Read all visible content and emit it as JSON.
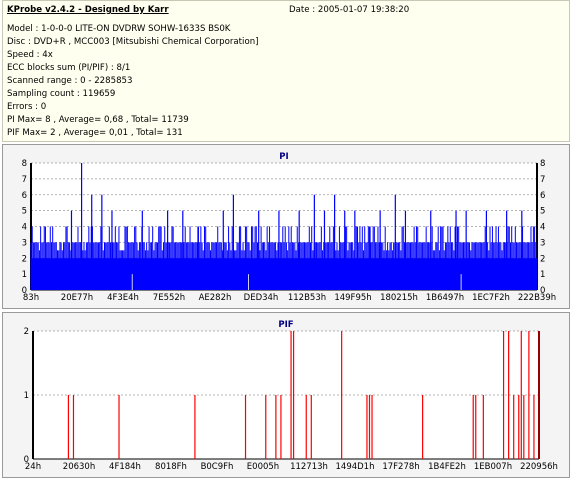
{
  "header": {
    "title": "KProbe v2.4.2 - Designed by Karr",
    "date": "Date : 2005-01-07 19:38:20",
    "lines": [
      "Model : 1-0-0-0 LITE-ON DVDRW SOHW-1633S BS0K",
      "Disc : DVD+R , MCC003 [Mitsubishi Chemical Corporation]",
      "Speed : 4x",
      "ECC blocks sum (PI/PIF) : 8/1",
      "Scanned range : 0 - 2285853",
      "Sampling count : 119659",
      "Errors : 0",
      "PI Max= 8 , Average= 0,68 , Total= 11739",
      "PIF Max= 2 , Average= 0,01 , Total= 131"
    ]
  },
  "colors": {
    "pi": "#0000ff",
    "pif": "#ff0000",
    "panel_bg": "#f4f4f4",
    "plot_bg": "#ffffff"
  },
  "chart_data": [
    {
      "type": "bar",
      "title": "PI",
      "ylim": [
        0,
        8
      ],
      "y_ticks": [
        "0",
        "1",
        "2",
        "3",
        "4",
        "5",
        "6",
        "7",
        "8"
      ],
      "x_tick_labels": [
        "83h",
        "20E77h",
        "4F3E4h",
        "7E552h",
        "AE282h",
        "DED34h",
        "112B53h",
        "149F95h",
        "180215h",
        "1B6497h",
        "1EC7F2h",
        "222B39h"
      ],
      "baseline": 2,
      "spikes": [
        {
          "x": 0.1,
          "v": 8
        },
        {
          "x": 0.08,
          "v": 5
        },
        {
          "x": 0.12,
          "v": 6
        },
        {
          "x": 0.14,
          "v": 6
        },
        {
          "x": 0.16,
          "v": 5
        },
        {
          "x": 0.22,
          "v": 5
        },
        {
          "x": 0.27,
          "v": 5
        },
        {
          "x": 0.3,
          "v": 5
        },
        {
          "x": 0.33,
          "v": 4
        },
        {
          "x": 0.38,
          "v": 5
        },
        {
          "x": 0.4,
          "v": 6
        },
        {
          "x": 0.45,
          "v": 5
        },
        {
          "x": 0.49,
          "v": 5
        },
        {
          "x": 0.53,
          "v": 5
        },
        {
          "x": 0.56,
          "v": 6
        },
        {
          "x": 0.58,
          "v": 5
        },
        {
          "x": 0.6,
          "v": 6
        },
        {
          "x": 0.62,
          "v": 5
        },
        {
          "x": 0.64,
          "v": 5
        },
        {
          "x": 0.67,
          "v": 4
        },
        {
          "x": 0.69,
          "v": 5
        },
        {
          "x": 0.72,
          "v": 6
        },
        {
          "x": 0.74,
          "v": 5
        },
        {
          "x": 0.79,
          "v": 5
        },
        {
          "x": 0.84,
          "v": 5
        },
        {
          "x": 0.86,
          "v": 5
        },
        {
          "x": 0.9,
          "v": 5
        },
        {
          "x": 0.94,
          "v": 5
        },
        {
          "x": 0.97,
          "v": 5
        }
      ]
    },
    {
      "type": "bar",
      "title": "PIF",
      "ylim": [
        0,
        2
      ],
      "y_ticks": [
        "0",
        "1",
        "2"
      ],
      "x_tick_labels": [
        "24h",
        "20630h",
        "4F184h",
        "8018Fh",
        "B0C9Fh",
        "E0005h",
        "112713h",
        "1494D1h",
        "17F278h",
        "1B4FE2h",
        "1EB007h",
        "220956h"
      ],
      "events": [
        {
          "x": 0.07,
          "v": 1
        },
        {
          "x": 0.08,
          "v": 1
        },
        {
          "x": 0.17,
          "v": 1
        },
        {
          "x": 0.32,
          "v": 1
        },
        {
          "x": 0.42,
          "v": 1
        },
        {
          "x": 0.46,
          "v": 1
        },
        {
          "x": 0.48,
          "v": 1
        },
        {
          "x": 0.49,
          "v": 1
        },
        {
          "x": 0.51,
          "v": 2
        },
        {
          "x": 0.515,
          "v": 2
        },
        {
          "x": 0.54,
          "v": 1
        },
        {
          "x": 0.55,
          "v": 1
        },
        {
          "x": 0.61,
          "v": 2
        },
        {
          "x": 0.66,
          "v": 1
        },
        {
          "x": 0.665,
          "v": 1
        },
        {
          "x": 0.67,
          "v": 1
        },
        {
          "x": 0.77,
          "v": 1
        },
        {
          "x": 0.87,
          "v": 1
        },
        {
          "x": 0.875,
          "v": 1
        },
        {
          "x": 0.89,
          "v": 1
        },
        {
          "x": 0.93,
          "v": 2
        },
        {
          "x": 0.94,
          "v": 2
        },
        {
          "x": 0.95,
          "v": 1
        },
        {
          "x": 0.96,
          "v": 1
        },
        {
          "x": 0.965,
          "v": 2
        },
        {
          "x": 0.97,
          "v": 1
        },
        {
          "x": 0.98,
          "v": 2
        },
        {
          "x": 0.99,
          "v": 1
        },
        {
          "x": 1.0,
          "v": 2
        }
      ]
    }
  ]
}
